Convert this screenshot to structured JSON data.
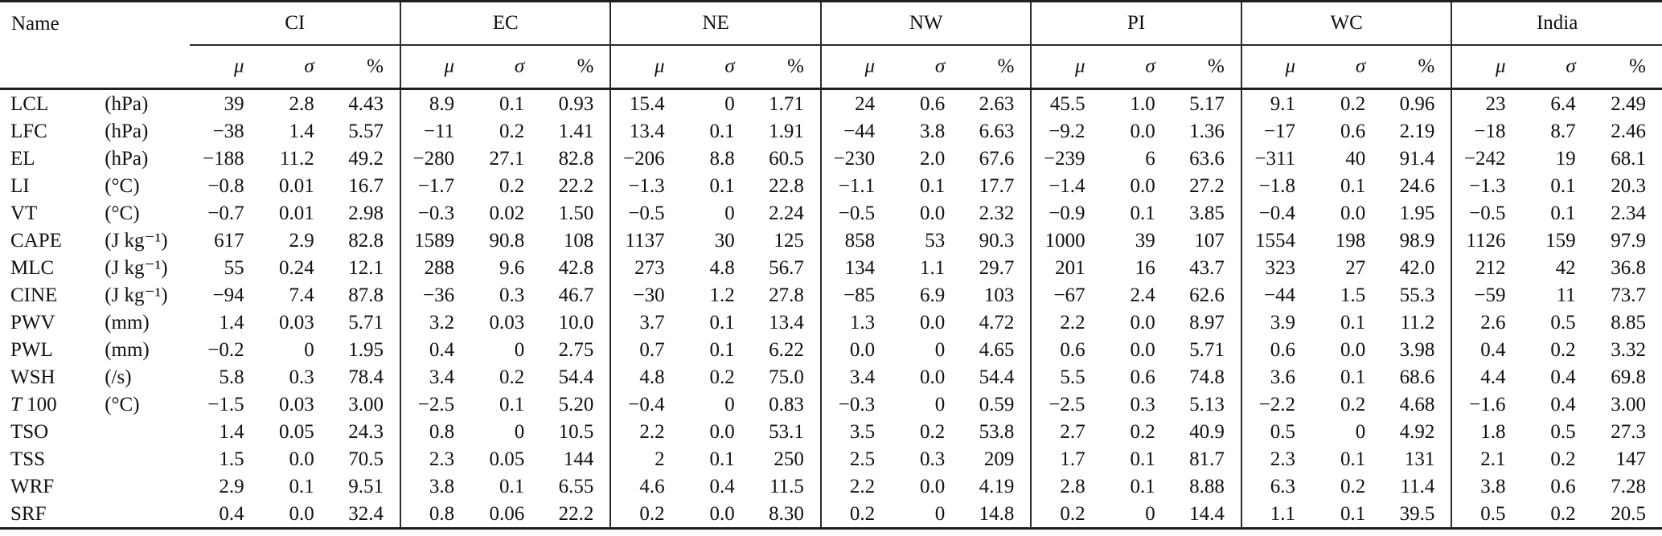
{
  "colors": {
    "text": "#111111",
    "rules": "#1f1f1f",
    "background": "#ffffff"
  },
  "table": {
    "name_header": "Name",
    "groups": [
      "CI",
      "EC",
      "NE",
      "NW",
      "PI",
      "WC",
      "India"
    ],
    "subheaders": {
      "mu": "μ",
      "sigma": "σ",
      "pct": "%"
    },
    "rows": [
      {
        "it": "",
        "name": "LCL",
        "unit": "(hPa)",
        "values": [
          "39",
          "2.8",
          "4.43",
          "8.9",
          "0.1",
          "0.93",
          "15.4",
          "0",
          "1.71",
          "24",
          "0.6",
          "2.63",
          "45.5",
          "1.0",
          "5.17",
          "9.1",
          "0.2",
          "0.96",
          "23",
          "6.4",
          "2.49"
        ]
      },
      {
        "it": "",
        "name": "LFC",
        "unit": "(hPa)",
        "values": [
          "−38",
          "1.4",
          "5.57",
          "−11",
          "0.2",
          "1.41",
          "13.4",
          "0.1",
          "1.91",
          "−44",
          "3.8",
          "6.63",
          "−9.2",
          "0.0",
          "1.36",
          "−17",
          "0.6",
          "2.19",
          "−18",
          "8.7",
          "2.46"
        ]
      },
      {
        "it": "",
        "name": "EL",
        "unit": "(hPa)",
        "values": [
          "−188",
          "11.2",
          "49.2",
          "−280",
          "27.1",
          "82.8",
          "−206",
          "8.8",
          "60.5",
          "−230",
          "2.0",
          "67.6",
          "−239",
          "6",
          "63.6",
          "−311",
          "40",
          "91.4",
          "−242",
          "19",
          "68.1"
        ]
      },
      {
        "it": "",
        "name": "LI",
        "unit": "(°C)",
        "values": [
          "−0.8",
          "0.01",
          "16.7",
          "−1.7",
          "0.2",
          "22.2",
          "−1.3",
          "0.1",
          "22.8",
          "−1.1",
          "0.1",
          "17.7",
          "−1.4",
          "0.0",
          "27.2",
          "−1.8",
          "0.1",
          "24.6",
          "−1.3",
          "0.1",
          "20.3"
        ]
      },
      {
        "it": "",
        "name": "VT",
        "unit": "(°C)",
        "values": [
          "−0.7",
          "0.01",
          "2.98",
          "−0.3",
          "0.02",
          "1.50",
          "−0.5",
          "0",
          "2.24",
          "−0.5",
          "0.0",
          "2.32",
          "−0.9",
          "0.1",
          "3.85",
          "−0.4",
          "0.0",
          "1.95",
          "−0.5",
          "0.1",
          "2.34"
        ]
      },
      {
        "it": "",
        "name": "CAPE",
        "unit": "(J kg⁻¹)",
        "values": [
          "617",
          "2.9",
          "82.8",
          "1589",
          "90.8",
          "108",
          "1137",
          "30",
          "125",
          "858",
          "53",
          "90.3",
          "1000",
          "39",
          "107",
          "1554",
          "198",
          "98.9",
          "1126",
          "159",
          "97.9"
        ]
      },
      {
        "it": "",
        "name": "MLC",
        "unit": "(J kg⁻¹)",
        "values": [
          "55",
          "0.24",
          "12.1",
          "288",
          "9.6",
          "42.8",
          "273",
          "4.8",
          "56.7",
          "134",
          "1.1",
          "29.7",
          "201",
          "16",
          "43.7",
          "323",
          "27",
          "42.0",
          "212",
          "42",
          "36.8"
        ]
      },
      {
        "it": "",
        "name": "CINE",
        "unit": "(J kg⁻¹)",
        "values": [
          "−94",
          "7.4",
          "87.8",
          "−36",
          "0.3",
          "46.7",
          "−30",
          "1.2",
          "27.8",
          "−85",
          "6.9",
          "103",
          "−67",
          "2.4",
          "62.6",
          "−44",
          "1.5",
          "55.3",
          "−59",
          "11",
          "73.7"
        ]
      },
      {
        "it": "",
        "name": "PWV",
        "unit": "(mm)",
        "values": [
          "1.4",
          "0.03",
          "5.71",
          "3.2",
          "0.03",
          "10.0",
          "3.7",
          "0.1",
          "13.4",
          "1.3",
          "0.0",
          "4.72",
          "2.2",
          "0.0",
          "8.97",
          "3.9",
          "0.1",
          "11.2",
          "2.6",
          "0.5",
          "8.85"
        ]
      },
      {
        "it": "",
        "name": "PWL",
        "unit": "(mm)",
        "values": [
          "−0.2",
          "0",
          "1.95",
          "0.4",
          "0",
          "2.75",
          "0.7",
          "0.1",
          "6.22",
          "0.0",
          "0",
          "4.65",
          "0.6",
          "0.0",
          "5.71",
          "0.6",
          "0.0",
          "3.98",
          "0.4",
          "0.2",
          "3.32"
        ]
      },
      {
        "it": "",
        "name": "WSH",
        "unit": "(/s)",
        "values": [
          "5.8",
          "0.3",
          "78.4",
          "3.4",
          "0.2",
          "54.4",
          "4.8",
          "0.2",
          "75.0",
          "3.4",
          "0.0",
          "54.4",
          "5.5",
          "0.6",
          "74.8",
          "3.6",
          "0.1",
          "68.6",
          "4.4",
          "0.4",
          "69.8"
        ]
      },
      {
        "it": "T",
        "name": " 100",
        "unit": "(°C)",
        "values": [
          "−1.5",
          "0.03",
          "3.00",
          "−2.5",
          "0.1",
          "5.20",
          "−0.4",
          "0",
          "0.83",
          "−0.3",
          "0",
          "0.59",
          "−2.5",
          "0.3",
          "5.13",
          "−2.2",
          "0.2",
          "4.68",
          "−1.6",
          "0.4",
          "3.00"
        ]
      },
      {
        "it": "",
        "name": "TSO",
        "unit": "",
        "values": [
          "1.4",
          "0.05",
          "24.3",
          "0.8",
          "0",
          "10.5",
          "2.2",
          "0.0",
          "53.1",
          "3.5",
          "0.2",
          "53.8",
          "2.7",
          "0.2",
          "40.9",
          "0.5",
          "0",
          "4.92",
          "1.8",
          "0.5",
          "27.3"
        ]
      },
      {
        "it": "",
        "name": "TSS",
        "unit": "",
        "values": [
          "1.5",
          "0.0",
          "70.5",
          "2.3",
          "0.05",
          "144",
          "2",
          "0.1",
          "250",
          "2.5",
          "0.3",
          "209",
          "1.7",
          "0.1",
          "81.7",
          "2.3",
          "0.1",
          "131",
          "2.1",
          "0.2",
          "147"
        ]
      },
      {
        "it": "",
        "name": "WRF",
        "unit": "",
        "values": [
          "2.9",
          "0.1",
          "9.51",
          "3.8",
          "0.1",
          "6.55",
          "4.6",
          "0.4",
          "11.5",
          "2.2",
          "0.0",
          "4.19",
          "2.8",
          "0.1",
          "8.88",
          "6.3",
          "0.2",
          "11.4",
          "3.8",
          "0.6",
          "7.28"
        ]
      },
      {
        "it": "",
        "name": "SRF",
        "unit": "",
        "values": [
          "0.4",
          "0.0",
          "32.4",
          "0.8",
          "0.06",
          "22.2",
          "0.2",
          "0.0",
          "8.30",
          "0.2",
          "0",
          "14.8",
          "0.2",
          "0",
          "14.4",
          "1.1",
          "0.1",
          "39.5",
          "0.5",
          "0.2",
          "20.5"
        ]
      }
    ]
  }
}
